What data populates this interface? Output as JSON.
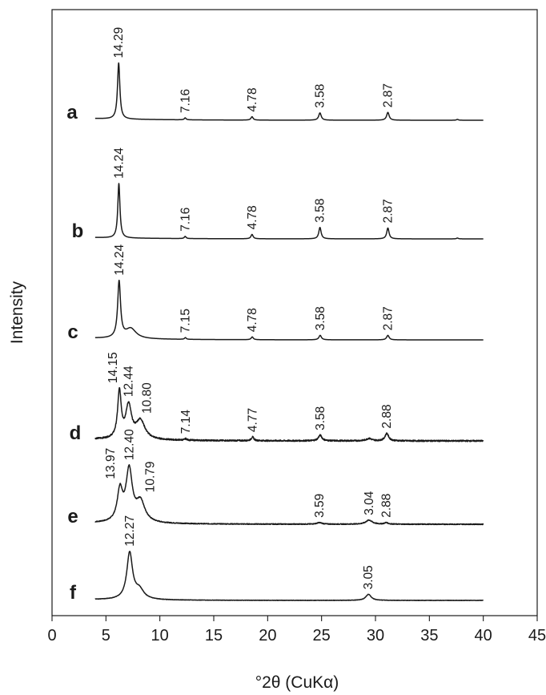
{
  "chart_data": {
    "type": "line",
    "xlabel": "°2θ (CuKα)",
    "ylabel": "Intensity",
    "xlim": [
      0,
      45
    ],
    "xticks": [
      0,
      5,
      10,
      15,
      20,
      25,
      30,
      35,
      40,
      45
    ],
    "x_range_measured": [
      4,
      40
    ],
    "series": [
      {
        "name": "a",
        "baseline": 0.05,
        "noise": 0.0,
        "peaks": [
          {
            "x": 6.18,
            "d": "14.29",
            "h": 1.0,
            "w": 0.13
          },
          {
            "x": 12.35,
            "d": "7.16",
            "h": 0.035,
            "w": 0.1
          },
          {
            "x": 18.55,
            "d": "4.78",
            "h": 0.06,
            "w": 0.12
          },
          {
            "x": 24.85,
            "d": "3.58",
            "h": 0.13,
            "w": 0.14
          },
          {
            "x": 31.15,
            "d": "2.87",
            "h": 0.14,
            "w": 0.14
          },
          {
            "x": 37.6,
            "d": "",
            "h": 0.015,
            "w": 0.1
          }
        ]
      },
      {
        "name": "b",
        "baseline": 0.04,
        "noise": 0.0,
        "peaks": [
          {
            "x": 6.2,
            "d": "14.24",
            "h": 1.0,
            "w": 0.12
          },
          {
            "x": 12.35,
            "d": "7.16",
            "h": 0.04,
            "w": 0.1
          },
          {
            "x": 18.55,
            "d": "4.78",
            "h": 0.08,
            "w": 0.12
          },
          {
            "x": 24.85,
            "d": "3.58",
            "h": 0.21,
            "w": 0.13
          },
          {
            "x": 31.15,
            "d": "2.87",
            "h": 0.2,
            "w": 0.13
          },
          {
            "x": 37.6,
            "d": "",
            "h": 0.015,
            "w": 0.1
          }
        ]
      },
      {
        "name": "c",
        "baseline": 0.05,
        "noise": 0.0,
        "peaks": [
          {
            "x": 6.22,
            "d": "14.24",
            "h": 1.0,
            "w": 0.16
          },
          {
            "x": 7.3,
            "d": "",
            "h": 0.18,
            "w": 0.6
          },
          {
            "x": 12.37,
            "d": "7.15",
            "h": 0.03,
            "w": 0.1
          },
          {
            "x": 18.57,
            "d": "4.78",
            "h": 0.05,
            "w": 0.12
          },
          {
            "x": 24.87,
            "d": "3.58",
            "h": 0.08,
            "w": 0.14
          },
          {
            "x": 31.15,
            "d": "2.87",
            "h": 0.08,
            "w": 0.14
          }
        ]
      },
      {
        "name": "d",
        "baseline": 0.06,
        "noise": 0.015,
        "peaks": [
          {
            "x": 6.25,
            "d": "14.15",
            "h": 1.0,
            "w": 0.2
          },
          {
            "x": 7.1,
            "d": "12.44",
            "h": 0.7,
            "w": 0.32
          },
          {
            "x": 8.2,
            "d": "10.80",
            "h": 0.4,
            "w": 0.5
          },
          {
            "x": 12.4,
            "d": "7.14",
            "h": 0.03,
            "w": 0.12
          },
          {
            "x": 18.6,
            "d": "4.77",
            "h": 0.08,
            "w": 0.14
          },
          {
            "x": 24.87,
            "d": "3.58",
            "h": 0.12,
            "w": 0.2
          },
          {
            "x": 29.4,
            "d": "",
            "h": 0.05,
            "w": 0.3
          },
          {
            "x": 31.05,
            "d": "2.88",
            "h": 0.16,
            "w": 0.2
          }
        ]
      },
      {
        "name": "e",
        "baseline": 0.04,
        "noise": 0.008,
        "peaks": [
          {
            "x": 6.3,
            "d": "13.97",
            "h": 0.6,
            "w": 0.3
          },
          {
            "x": 7.15,
            "d": "12.40",
            "h": 1.0,
            "w": 0.35
          },
          {
            "x": 8.2,
            "d": "10.79",
            "h": 0.4,
            "w": 0.5
          },
          {
            "x": 24.8,
            "d": "3.59",
            "h": 0.03,
            "w": 0.3
          },
          {
            "x": 29.4,
            "d": "3.04",
            "h": 0.08,
            "w": 0.35
          },
          {
            "x": 31.0,
            "d": "2.88",
            "h": 0.03,
            "w": 0.2
          }
        ]
      },
      {
        "name": "f",
        "baseline": 0.03,
        "noise": 0.004,
        "peaks": [
          {
            "x": 7.2,
            "d": "12.27",
            "h": 1.0,
            "w": 0.32
          },
          {
            "x": 8.1,
            "d": "",
            "h": 0.2,
            "w": 0.5
          },
          {
            "x": 29.35,
            "d": "3.05",
            "h": 0.13,
            "w": 0.3
          }
        ]
      }
    ]
  }
}
